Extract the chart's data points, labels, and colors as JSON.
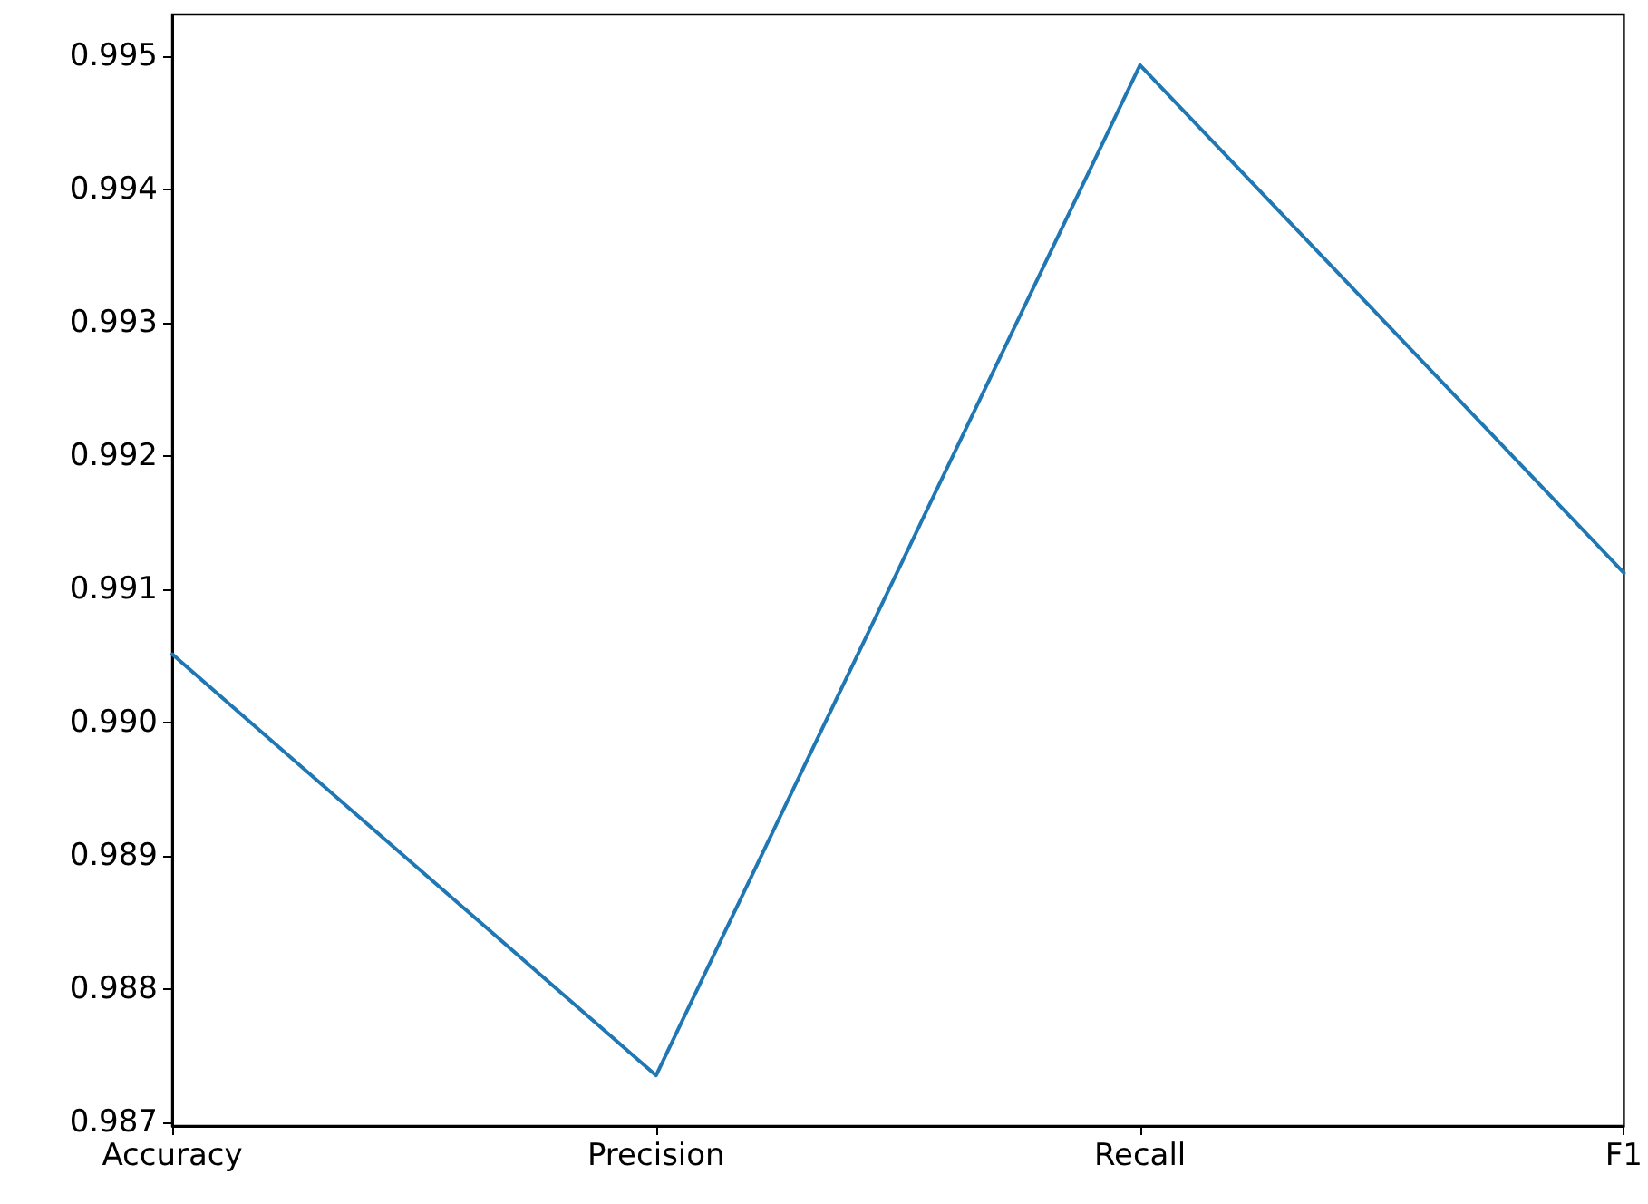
{
  "chart_data": {
    "type": "line",
    "categories": [
      "Accuracy",
      "Precision",
      "Recall",
      "F1"
    ],
    "series": [
      {
        "color": "#1f77b4",
        "values": [
          0.99051,
          0.98735,
          0.99493,
          0.99112
        ]
      }
    ],
    "ylim": [
      0.98697,
      0.99531
    ],
    "yticks": [
      0.987,
      0.988,
      0.989,
      {
        "value": 0.99,
        "label": "0.990"
      },
      0.991,
      0.992,
      0.993,
      0.994,
      0.995
    ],
    "grid": false,
    "marker": "none",
    "line_style": "solid"
  }
}
